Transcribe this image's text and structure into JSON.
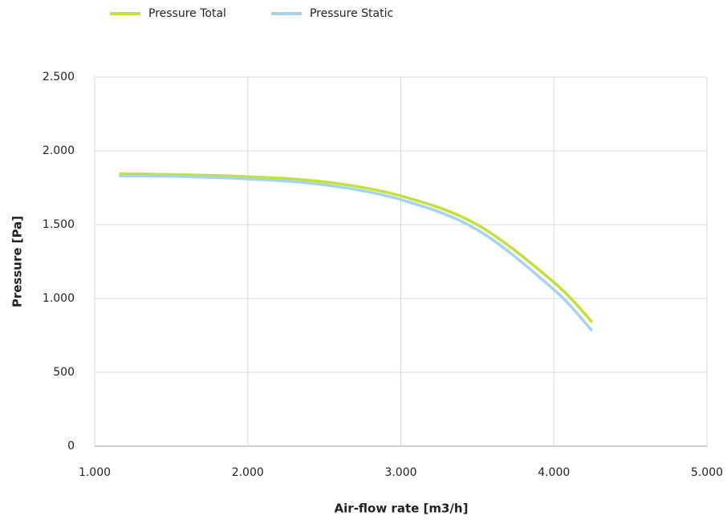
{
  "chart_data": {
    "type": "line",
    "x_label": "Air-flow rate [m3/h]",
    "y_label": "Pressure [Pa]",
    "x": [
      1160,
      1500,
      2000,
      2500,
      3000,
      3500,
      4000,
      4250
    ],
    "series": [
      {
        "name": "Pressure Total",
        "color": "#c5e03a",
        "values": [
          1845,
          1840,
          1825,
          1790,
          1695,
          1500,
          1110,
          840
        ]
      },
      {
        "name": "Pressure Static",
        "color": "#a3d5ee",
        "values": [
          1830,
          1828,
          1810,
          1770,
          1670,
          1465,
          1060,
          780
        ]
      }
    ],
    "xlim": [
      1000,
      5000
    ],
    "xticks": [
      {
        "value": 1000,
        "label": "1.000"
      },
      {
        "value": 2000,
        "label": "2.000"
      },
      {
        "value": 3000,
        "label": "3.000"
      },
      {
        "value": 4000,
        "label": "4.000"
      },
      {
        "value": 5000,
        "label": "5.000"
      }
    ],
    "ylim": [
      0,
      2500
    ],
    "yticks": [
      0,
      500,
      {
        "value": 1000,
        "label": "1.000"
      },
      {
        "value": 1500,
        "label": "1.500"
      },
      {
        "value": 2000,
        "label": "2.000"
      },
      {
        "value": 2500,
        "label": "2.500"
      }
    ],
    "grid": true,
    "legend": "top"
  }
}
